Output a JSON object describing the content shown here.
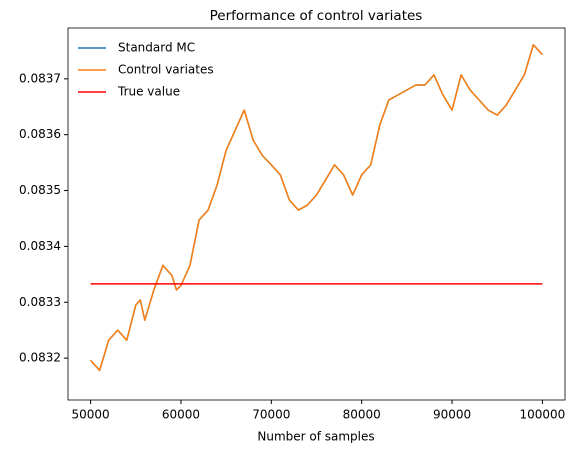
{
  "chart_data": {
    "type": "line",
    "title": "Performance of control variates",
    "xlabel": "Number of samples",
    "x": [
      50000,
      51000,
      52000,
      53000,
      54000,
      55000,
      55500,
      56000,
      57000,
      58000,
      59000,
      59500,
      60000,
      61000,
      62000,
      63000,
      64000,
      65000,
      66000,
      67000,
      68000,
      69000,
      70000,
      71000,
      72000,
      73000,
      74000,
      75000,
      76000,
      77000,
      78000,
      79000,
      80000,
      81000,
      82000,
      83000,
      84000,
      85000,
      86000,
      87000,
      88000,
      89000,
      90000,
      91000,
      92000,
      93000,
      94000,
      95000,
      96000,
      97000,
      98000,
      99000,
      100000
    ],
    "series": [
      {
        "name": "Standard MC",
        "color": "#1f77b4",
        "values": [
          0.083196,
          0.083178,
          0.083232,
          0.08325,
          0.083232,
          0.083295,
          0.083304,
          0.083268,
          0.083322,
          0.083366,
          0.083348,
          0.083322,
          0.08333,
          0.083366,
          0.083447,
          0.083465,
          0.08351,
          0.083572,
          0.083608,
          0.083644,
          0.08359,
          0.083563,
          0.083546,
          0.083528,
          0.083483,
          0.083465,
          0.083474,
          0.083492,
          0.083519,
          0.083546,
          0.083528,
          0.083492,
          0.083528,
          0.083546,
          0.083617,
          0.083662,
          0.083671,
          0.08368,
          0.083689,
          0.083689,
          0.083707,
          0.083671,
          0.083644,
          0.083707,
          0.08368,
          0.083662,
          0.083644,
          0.083635,
          0.083653,
          0.08368,
          0.083707,
          0.083761,
          0.083743
        ]
      },
      {
        "name": "Control variates",
        "color": "#ff7f0e",
        "values": [
          0.083196,
          0.083178,
          0.083232,
          0.08325,
          0.083232,
          0.083295,
          0.083304,
          0.083268,
          0.083322,
          0.083366,
          0.083348,
          0.083322,
          0.08333,
          0.083366,
          0.083447,
          0.083465,
          0.08351,
          0.083572,
          0.083608,
          0.083644,
          0.08359,
          0.083563,
          0.083546,
          0.083528,
          0.083483,
          0.083465,
          0.083474,
          0.083492,
          0.083519,
          0.083546,
          0.083528,
          0.083492,
          0.083528,
          0.083546,
          0.083617,
          0.083662,
          0.083671,
          0.08368,
          0.083689,
          0.083689,
          0.083707,
          0.083671,
          0.083644,
          0.083707,
          0.08368,
          0.083662,
          0.083644,
          0.083635,
          0.083653,
          0.08368,
          0.083707,
          0.083761,
          0.083743
        ]
      },
      {
        "name": "True value",
        "color": "#ff0000",
        "x": [
          50000,
          100000
        ],
        "values": [
          0.083333,
          0.083333
        ]
      }
    ],
    "xlim": [
      47500,
      102500
    ],
    "ylim": [
      0.083125,
      0.083791
    ],
    "xticks": [
      50000,
      60000,
      70000,
      80000,
      90000,
      100000
    ],
    "yticks": [
      0.0832,
      0.0833,
      0.0834,
      0.0835,
      0.0836,
      0.0837
    ],
    "legend": "upper left",
    "grid": false
  }
}
